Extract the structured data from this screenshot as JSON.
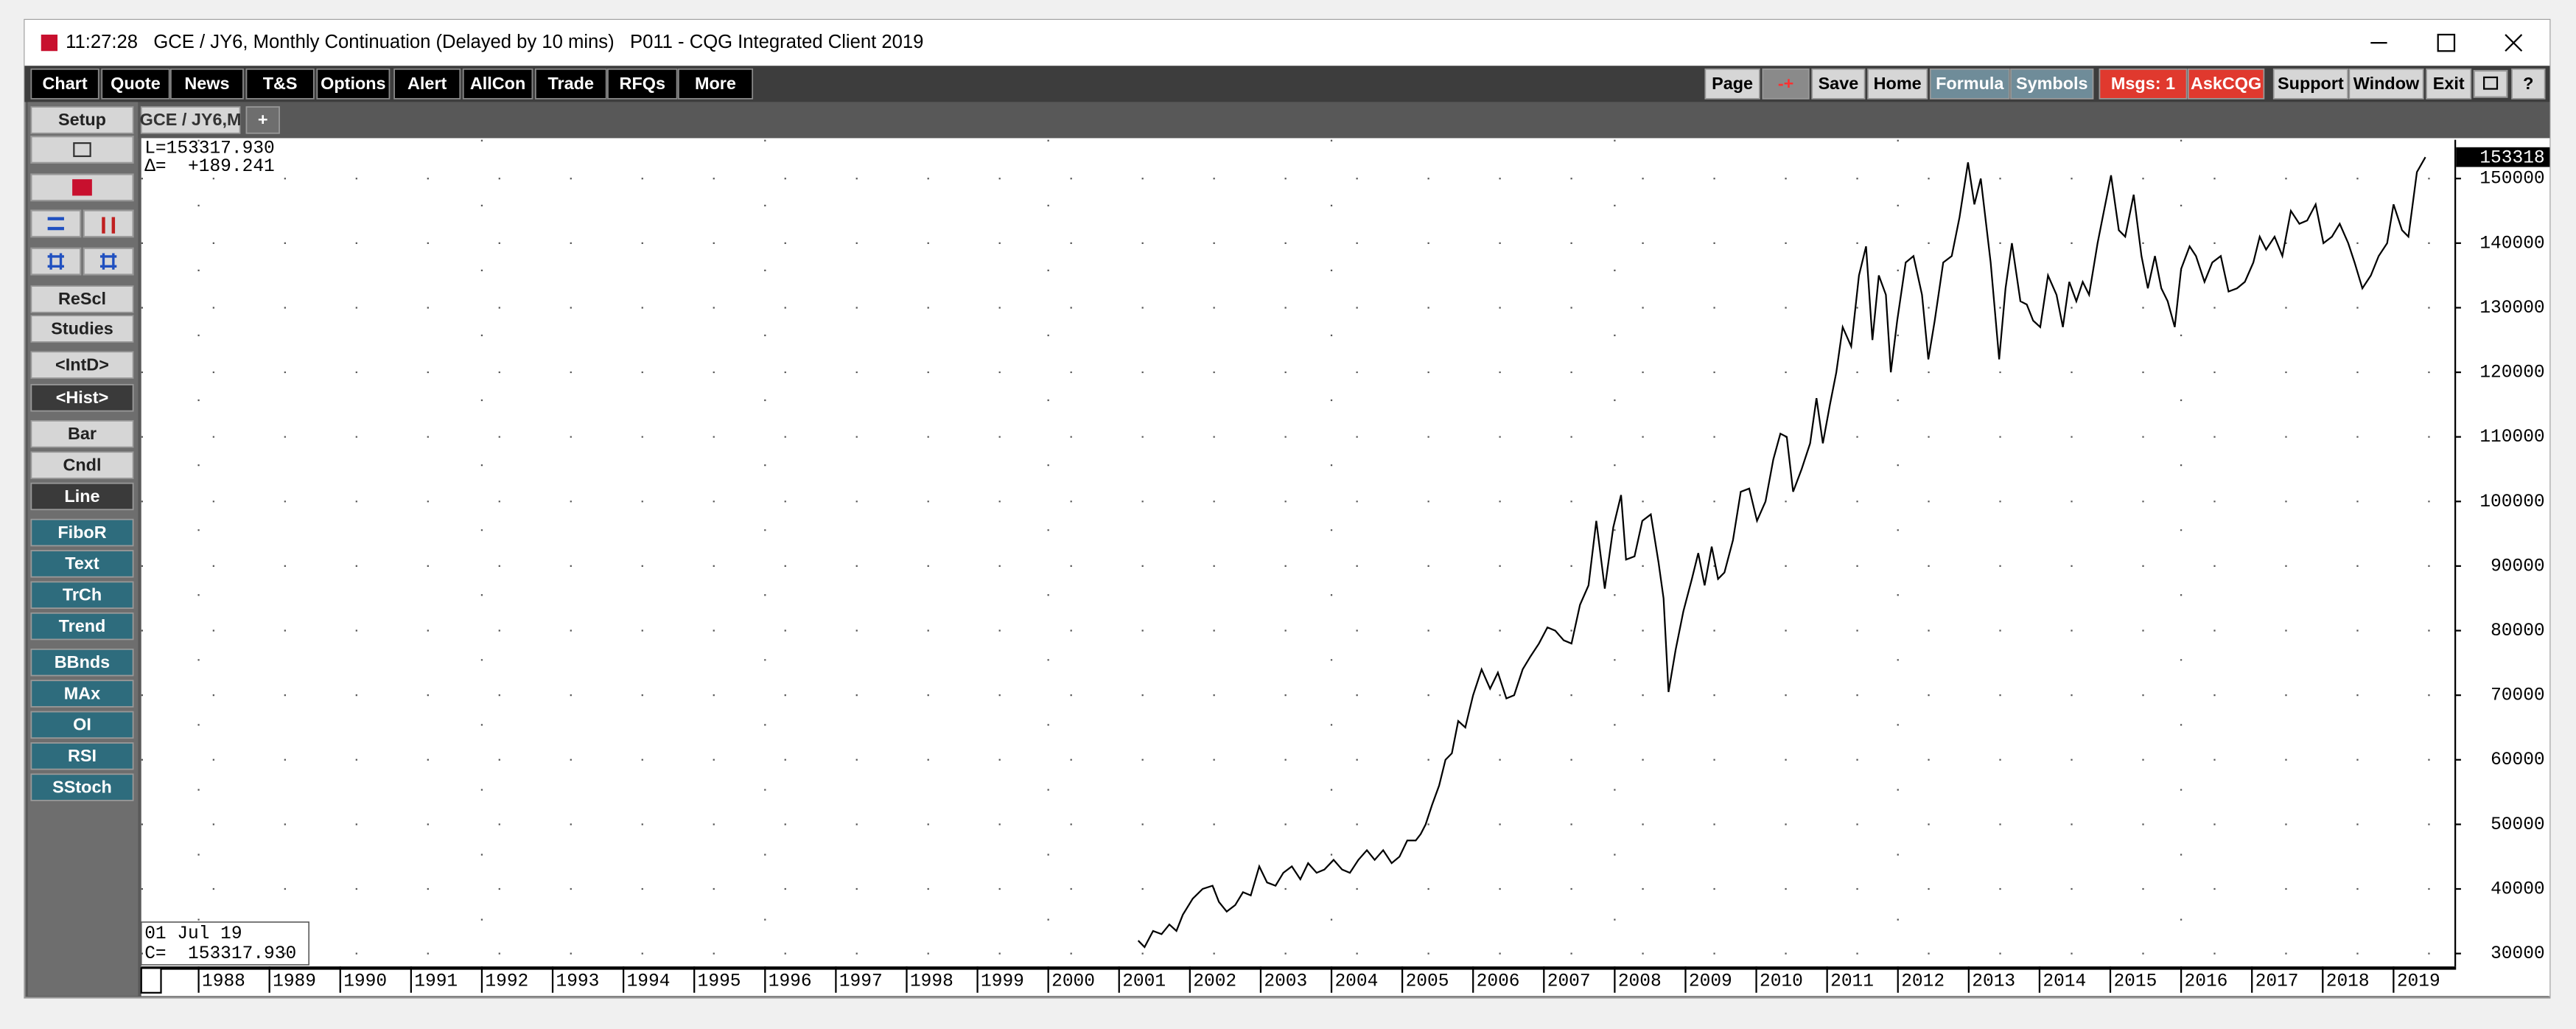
{
  "window": {
    "title": "11:27:28   GCE / JY6, Monthly Continuation (Delayed by 10 mins)   P011 - CQG Integrated Client 2019"
  },
  "toolbar": {
    "left": [
      "Chart",
      "Quote",
      "News",
      "T&S",
      "Options",
      "Alert",
      "AllCon",
      "Trade",
      "RFQs",
      "More"
    ],
    "right": [
      "Page",
      "-+",
      "Save",
      "Home",
      "Formula",
      "Symbols",
      "Msgs: 1",
      "AskCQG",
      "Support",
      "Window",
      "Exit",
      "?"
    ]
  },
  "sidebar": [
    "Setup",
    "ReScl",
    "Studies",
    "<IntD>",
    "<Hist>",
    "Bar",
    "Cndl",
    "Line",
    "FiboR",
    "Text",
    "TrCh",
    "Trend",
    "BBnds",
    "MAx",
    "OI",
    "RSI",
    "SStoch"
  ],
  "tabs": [
    "GCE / JY6,M",
    "+"
  ],
  "chart_data": {
    "type": "line",
    "color": "#000000",
    "readout_top": [
      "L=153317.930",
      "Δ=  +189.241"
    ],
    "readout_bottom": [
      "01 Jul 19",
      "C=  153317.930"
    ],
    "last_label": "153318",
    "x": [
      2001.27,
      2001.36,
      2001.48,
      2001.6,
      2001.71,
      2001.81,
      2001.9,
      2002.04,
      2002.18,
      2002.32,
      2002.41,
      2002.52,
      2002.64,
      2002.75,
      2002.86,
      2002.98,
      2003.09,
      2003.21,
      2003.32,
      2003.44,
      2003.56,
      2003.67,
      2003.79,
      2003.9,
      2004.03,
      2004.15,
      2004.26,
      2004.38,
      2004.5,
      2004.61,
      2004.73,
      2004.85,
      2004.96,
      2005.07,
      2005.19,
      2005.26,
      2005.33,
      2005.42,
      2005.52,
      2005.61,
      2005.7,
      2005.79,
      2005.89,
      2006,
      2006.12,
      2006.24,
      2006.35,
      2006.47,
      2006.58,
      2006.7,
      2006.81,
      2006.93,
      2007.05,
      2007.16,
      2007.28,
      2007.39,
      2007.51,
      2007.63,
      2007.74,
      2007.86,
      2007.98,
      2008.09,
      2008.16,
      2008.28,
      2008.39,
      2008.51,
      2008.62,
      2008.69,
      2008.76,
      2008.86,
      2008.97,
      2009.09,
      2009.18,
      2009.27,
      2009.37,
      2009.46,
      2009.55,
      2009.67,
      2009.78,
      2009.9,
      2010.01,
      2010.13,
      2010.24,
      2010.34,
      2010.43,
      2010.52,
      2010.64,
      2010.76,
      2010.85,
      2010.94,
      2011.04,
      2011.13,
      2011.22,
      2011.34,
      2011.45,
      2011.55,
      2011.64,
      2011.73,
      2011.83,
      2011.9,
      2011.99,
      2012.11,
      2012.22,
      2012.34,
      2012.43,
      2012.52,
      2012.64,
      2012.76,
      2012.87,
      2012.99,
      2013.08,
      2013.17,
      2013.31,
      2013.43,
      2013.52,
      2013.61,
      2013.73,
      2013.82,
      2013.91,
      2014.01,
      2014.12,
      2014.24,
      2014.33,
      2014.42,
      2014.52,
      2014.61,
      2014.7,
      2014.82,
      2014.91,
      2015.01,
      2015.12,
      2015.21,
      2015.33,
      2015.44,
      2015.53,
      2015.63,
      2015.72,
      2015.81,
      2015.91,
      2016,
      2016.12,
      2016.21,
      2016.33,
      2016.44,
      2016.56,
      2016.67,
      2016.79,
      2016.9,
      2017.02,
      2017.11,
      2017.2,
      2017.32,
      2017.43,
      2017.55,
      2017.67,
      2017.78,
      2017.9,
      2018.01,
      2018.13,
      2018.24,
      2018.36,
      2018.45,
      2018.56,
      2018.68,
      2018.79,
      2018.91,
      2019,
      2019.12,
      2019.21,
      2019.33,
      2019.45
    ],
    "values": [
      32000,
      31000,
      33500,
      33000,
      34500,
      33500,
      36000,
      38500,
      40000,
      40500,
      38000,
      36500,
      37500,
      39500,
      39000,
      43500,
      41000,
      40500,
      42500,
      43500,
      41500,
      44000,
      42500,
      43000,
      44500,
      43000,
      42500,
      44500,
      46000,
      44500,
      46000,
      44000,
      45000,
      47500,
      47500,
      48500,
      50000,
      53000,
      56000,
      60000,
      61000,
      66000,
      65000,
      70000,
      74000,
      71000,
      73500,
      69500,
      70000,
      74000,
      76000,
      78000,
      80500,
      80000,
      78500,
      78000,
      84000,
      87000,
      97000,
      86500,
      96000,
      101000,
      91000,
      91500,
      97000,
      98000,
      90500,
      85000,
      70500,
      77000,
      83000,
      88000,
      92000,
      87000,
      93000,
      88000,
      89000,
      94000,
      101500,
      102000,
      97000,
      100000,
      106500,
      110500,
      110000,
      101500,
      105000,
      109000,
      116000,
      109000,
      115000,
      120000,
      127000,
      124000,
      135000,
      139500,
      125000,
      135000,
      132000,
      120000,
      128000,
      137000,
      138000,
      132000,
      122000,
      128000,
      137000,
      138000,
      144000,
      152500,
      146000,
      150000,
      137000,
      122000,
      133000,
      140000,
      131000,
      130500,
      128000,
      127000,
      135000,
      132000,
      127000,
      134000,
      131000,
      134000,
      132000,
      140000,
      145000,
      150500,
      142000,
      141000,
      147500,
      138000,
      133000,
      138000,
      133000,
      131000,
      127000,
      136000,
      139500,
      138000,
      134000,
      137000,
      138000,
      132500,
      133000,
      134000,
      137000,
      141000,
      139000,
      141000,
      138000,
      145000,
      143000,
      143500,
      146000,
      140000,
      141000,
      143000,
      140000,
      137000,
      133000,
      135000,
      138000,
      140000,
      146000,
      142000,
      141000,
      151000,
      153317.93
    ],
    "xlim": [
      1987.19,
      2019.86
    ],
    "xticks": [
      1988,
      1989,
      1990,
      1991,
      1992,
      1993,
      1994,
      1995,
      1996,
      1997,
      1998,
      1999,
      2000,
      2001,
      2002,
      2003,
      2004,
      2005,
      2006,
      2007,
      2008,
      2009,
      2010,
      2011,
      2012,
      2013,
      2014,
      2015,
      2016,
      2017,
      2018,
      2019
    ],
    "ylim": [
      28000,
      156000
    ],
    "yticks": [
      30000,
      40000,
      50000,
      60000,
      70000,
      80000,
      90000,
      100000,
      110000,
      120000,
      130000,
      140000,
      150000
    ],
    "grid": true
  }
}
